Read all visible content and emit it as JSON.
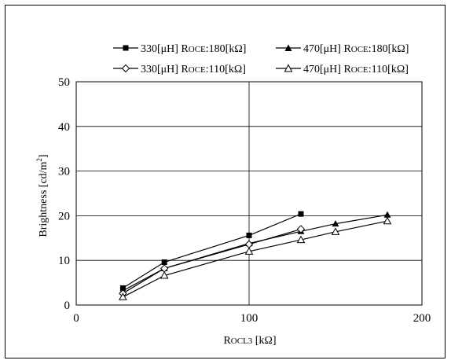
{
  "chart_data": {
    "type": "line",
    "xlabel": "ROCL3 [kΩ]",
    "xlabel_parts": {
      "main": "R",
      "sub": "OCL3",
      "unit": " [kΩ]"
    },
    "ylabel": "Brightness [cd/m2]",
    "ylabel_parts": {
      "main": "Brightness [cd/m",
      "sup": "2",
      "end": "]"
    },
    "xlim": [
      0,
      200
    ],
    "ylim": [
      0,
      50
    ],
    "xticks": [
      0,
      100,
      200
    ],
    "yticks": [
      0,
      10,
      20,
      30,
      40,
      50
    ],
    "grid": true,
    "legend_position": "top",
    "series": [
      {
        "name": "330[μH] ROCE:180[kΩ]",
        "name_parts": {
          "a": "330[μH] R",
          "sub": "OCE",
          "b": ":180[kΩ]"
        },
        "marker": "filled-square",
        "x": [
          27,
          51,
          100,
          130
        ],
        "y": [
          3.8,
          9.6,
          15.6,
          20.4
        ]
      },
      {
        "name": "470[μH] ROCE:180[kΩ]",
        "name_parts": {
          "a": "470[μH] R",
          "sub": "OCE",
          "b": ":180[kΩ]"
        },
        "marker": "filled-triangle",
        "x": [
          27,
          51,
          100,
          130,
          150,
          180
        ],
        "y": [
          3.2,
          8.2,
          13.8,
          16.5,
          18.2,
          20.2
        ]
      },
      {
        "name": "330[μH] ROCE:110[kΩ]",
        "name_parts": {
          "a": "330[μH] R",
          "sub": "OCE",
          "b": ":110[kΩ]"
        },
        "marker": "open-diamond",
        "x": [
          27,
          51,
          100,
          130
        ],
        "y": [
          2.6,
          8.2,
          13.6,
          17.0
        ]
      },
      {
        "name": "470[μH] ROCE:110[kΩ]",
        "name_parts": {
          "a": "470[μH] R",
          "sub": "OCE",
          "b": ":110[kΩ]"
        },
        "marker": "open-triangle",
        "x": [
          27,
          51,
          100,
          130,
          150,
          180
        ],
        "y": [
          1.8,
          6.6,
          12.0,
          14.6,
          16.4,
          18.8
        ]
      }
    ]
  }
}
